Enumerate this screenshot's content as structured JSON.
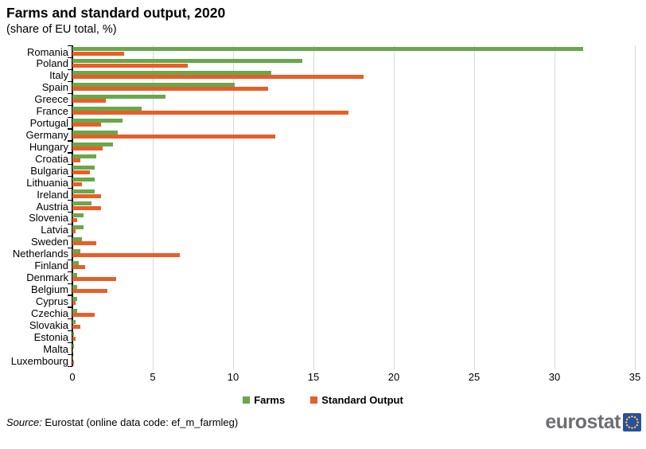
{
  "header": {
    "title": "Farms and standard output, 2020",
    "subtitle": "(share of EU total, %)"
  },
  "footer": {
    "source_prefix": "Source:",
    "source_text": " Eurostat (online data code: ef_m_farmleg)",
    "logo_text": "eurostat"
  },
  "colors": {
    "farms": "#69a74b",
    "standard_output": "#e95e27",
    "gridline": "#d9d9d9",
    "axis": "#000000",
    "logo_text": "#6e6e72",
    "logo_blue": "#2a4fa2",
    "logo_star": "#f8d12c"
  },
  "chart_data": {
    "type": "bar",
    "orientation": "horizontal",
    "title": "Farms and standard output, 2020",
    "subtitle": "(share of EU total, %)",
    "grid": "vertical",
    "legend_position": "bottom",
    "xlim": [
      0,
      35
    ],
    "xticks": [
      0,
      5,
      10,
      15,
      20,
      25,
      30,
      35
    ],
    "categories": [
      "Romania",
      "Poland",
      "Italy",
      "Spain",
      "Greece",
      "France",
      "Portugal",
      "Germany",
      "Hungary",
      "Croatia",
      "Bulgaria",
      "Lithuania",
      "Ireland",
      "Austria",
      "Slovenia",
      "Latvia",
      "Sweden",
      "Netherlands",
      "Finland",
      "Denmark",
      "Belgium",
      "Cyprus",
      "Czechia",
      "Slovakia",
      "Estonia",
      "Malta",
      "Luxembourg"
    ],
    "series": [
      {
        "name": "Farms",
        "color": "#69a74b",
        "values": [
          31.8,
          14.3,
          12.4,
          10.1,
          5.8,
          4.3,
          3.1,
          2.8,
          2.5,
          1.5,
          1.4,
          1.4,
          1.4,
          1.2,
          0.7,
          0.7,
          0.6,
          0.5,
          0.4,
          0.3,
          0.3,
          0.3,
          0.3,
          0.2,
          0.1,
          0.1,
          0.05
        ]
      },
      {
        "name": "Standard Output",
        "color": "#e95e27",
        "values": [
          3.2,
          7.2,
          18.1,
          12.2,
          2.1,
          17.2,
          1.8,
          12.6,
          1.9,
          0.5,
          1.1,
          0.6,
          1.8,
          1.8,
          0.3,
          0.2,
          1.5,
          6.7,
          0.8,
          2.7,
          2.2,
          0.2,
          1.4,
          0.5,
          0.2,
          0.05,
          0.1
        ]
      }
    ]
  }
}
